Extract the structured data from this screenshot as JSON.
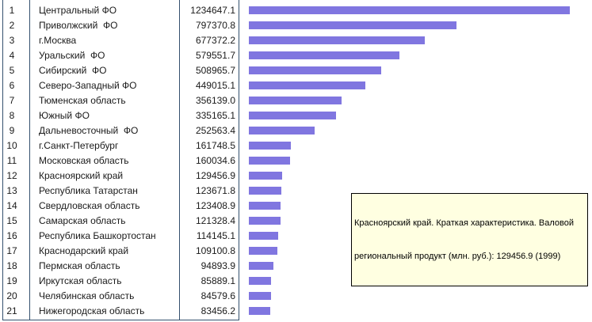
{
  "colors": {
    "background": "#ffffff",
    "text": "#1a1a1a",
    "table_border": "#34506E",
    "bar": "#8076E0",
    "tooltip_bg": "#FFFFE1",
    "tooltip_border": "#000000"
  },
  "chart_data": {
    "type": "bar",
    "orientation": "horizontal",
    "title": "",
    "xlabel": "",
    "ylabel": "",
    "legend": null,
    "grid": false,
    "categories": [
      "Центральный ФО",
      "Приволжский  ФО",
      "г.Москва",
      "Уральский  ФО",
      "Сибирский  ФО",
      "Северо-Западный ФО",
      "Тюменская область",
      "Южный ФО",
      "Дальневосточный  ФО",
      "г.Санкт-Петербург",
      "Московская область",
      "Красноярский край",
      "Республика Татарстан",
      "Свердловская область",
      "Самарская область",
      "Республика Башкортостан",
      "Краснодарский край",
      "Пермская область",
      "Иркутская область",
      "Челябинская область",
      "Нижегородская область"
    ],
    "values": [
      1234647.1,
      797370.8,
      677372.2,
      579551.7,
      508965.7,
      449015.1,
      356139.0,
      335165.1,
      252563.4,
      161748.5,
      160034.6,
      129456.9,
      123671.8,
      123408.9,
      121328.4,
      114145.1,
      109100.8,
      94893.9,
      85889.1,
      84579.6,
      83456.2
    ]
  },
  "table": {
    "rows": [
      {
        "rank": "1",
        "region": "Центральный ФО",
        "value": "1234647.1"
      },
      {
        "rank": "2",
        "region": "Приволжский  ФО",
        "value": "797370.8"
      },
      {
        "rank": "3",
        "region": "г.Москва",
        "value": "677372.2"
      },
      {
        "rank": "4",
        "region": "Уральский  ФО",
        "value": "579551.7"
      },
      {
        "rank": "5",
        "region": "Сибирский  ФО",
        "value": "508965.7"
      },
      {
        "rank": "6",
        "region": "Северо-Западный ФО",
        "value": "449015.1"
      },
      {
        "rank": "7",
        "region": "Тюменская область",
        "value": "356139.0"
      },
      {
        "rank": "8",
        "region": "Южный ФО",
        "value": "335165.1"
      },
      {
        "rank": "9",
        "region": "Дальневосточный  ФО",
        "value": "252563.4"
      },
      {
        "rank": "10",
        "region": "г.Санкт-Петербург",
        "value": "161748.5"
      },
      {
        "rank": "11",
        "region": "Московская область",
        "value": "160034.6"
      },
      {
        "rank": "12",
        "region": "Красноярский край",
        "value": "129456.9"
      },
      {
        "rank": "13",
        "region": "Республика Татарстан",
        "value": "123671.8"
      },
      {
        "rank": "14",
        "region": "Свердловская область",
        "value": "123408.9"
      },
      {
        "rank": "15",
        "region": "Самарская область",
        "value": "121328.4"
      },
      {
        "rank": "16",
        "region": "Республика Башкортостан",
        "value": "114145.1"
      },
      {
        "rank": "17",
        "region": "Краснодарский край",
        "value": "109100.8"
      },
      {
        "rank": "18",
        "region": "Пермская область",
        "value": "94893.9"
      },
      {
        "rank": "19",
        "region": "Иркутская область",
        "value": "85889.1"
      },
      {
        "rank": "20",
        "region": "Челябинская область",
        "value": "84579.6"
      },
      {
        "rank": "21",
        "region": "Нижегородская область",
        "value": "83456.2"
      }
    ]
  },
  "tooltip": {
    "line1": "Красноярский край. Краткая характеристика. Валовой",
    "line2": "региональный продукт (млн. руб.): 129456.9 (1999)"
  }
}
